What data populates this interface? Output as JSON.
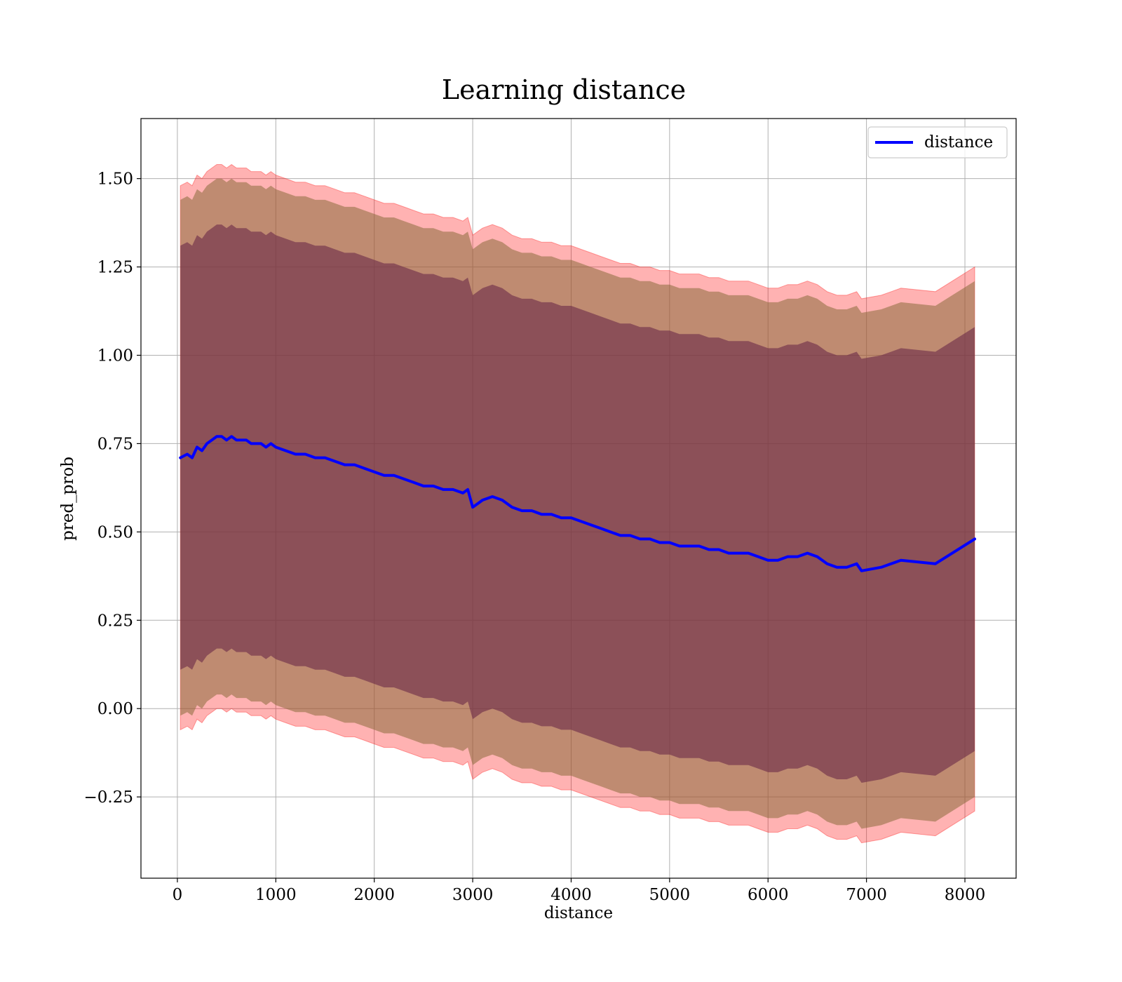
{
  "chart_data": {
    "type": "line",
    "title": "Learning distance",
    "xlabel": "distance",
    "ylabel": "pred_prob",
    "xlim": [
      -370,
      8520
    ],
    "ylim": [
      -0.48,
      1.67
    ],
    "xticks": [
      0,
      1000,
      2000,
      3000,
      4000,
      5000,
      6000,
      7000,
      8000
    ],
    "xtick_labels": [
      "0",
      "1000",
      "2000",
      "3000",
      "4000",
      "5000",
      "6000",
      "7000",
      "8000"
    ],
    "yticks": [
      -0.25,
      0.0,
      0.25,
      0.5,
      0.75,
      1.0,
      1.25,
      1.5
    ],
    "ytick_labels": [
      "−0.25",
      "0.00",
      "0.25",
      "0.50",
      "0.75",
      "1.00",
      "1.25",
      "1.50"
    ],
    "grid": true,
    "legend": {
      "position": "top-right",
      "entries": [
        "distance"
      ]
    },
    "colors": {
      "line": "#0000ff",
      "band_outer": "#ff0000",
      "band_mid": "#8b6c3c",
      "band_inner": "#6b2a48",
      "grid": "#b0b0b0"
    },
    "band_offsets": {
      "inner": 0.6,
      "mid": 0.73,
      "outer": 0.77
    },
    "series": [
      {
        "name": "distance",
        "x": [
          30,
          100,
          150,
          200,
          250,
          300,
          350,
          400,
          450,
          500,
          550,
          600,
          650,
          700,
          750,
          800,
          850,
          900,
          950,
          1000,
          1100,
          1200,
          1300,
          1400,
          1500,
          1600,
          1700,
          1800,
          1900,
          2000,
          2100,
          2200,
          2300,
          2400,
          2500,
          2600,
          2700,
          2800,
          2900,
          2950,
          3000,
          3050,
          3100,
          3200,
          3300,
          3400,
          3500,
          3600,
          3700,
          3800,
          3900,
          4000,
          4100,
          4200,
          4300,
          4400,
          4500,
          4600,
          4700,
          4800,
          4900,
          5000,
          5100,
          5200,
          5300,
          5400,
          5500,
          5600,
          5700,
          5800,
          5900,
          6000,
          6100,
          6200,
          6300,
          6400,
          6500,
          6600,
          6700,
          6800,
          6900,
          6950,
          7150,
          7350,
          7700,
          8100
        ],
        "y": [
          0.71,
          0.72,
          0.71,
          0.74,
          0.73,
          0.75,
          0.76,
          0.77,
          0.77,
          0.76,
          0.77,
          0.76,
          0.76,
          0.76,
          0.75,
          0.75,
          0.75,
          0.74,
          0.75,
          0.74,
          0.73,
          0.72,
          0.72,
          0.71,
          0.71,
          0.7,
          0.69,
          0.69,
          0.68,
          0.67,
          0.66,
          0.66,
          0.65,
          0.64,
          0.63,
          0.63,
          0.62,
          0.62,
          0.61,
          0.62,
          0.57,
          0.58,
          0.59,
          0.6,
          0.59,
          0.57,
          0.56,
          0.56,
          0.55,
          0.55,
          0.54,
          0.54,
          0.53,
          0.52,
          0.51,
          0.5,
          0.49,
          0.49,
          0.48,
          0.48,
          0.47,
          0.47,
          0.46,
          0.46,
          0.46,
          0.45,
          0.45,
          0.44,
          0.44,
          0.44,
          0.43,
          0.42,
          0.42,
          0.43,
          0.43,
          0.44,
          0.43,
          0.41,
          0.4,
          0.4,
          0.41,
          0.39,
          0.4,
          0.42,
          0.41,
          0.48
        ]
      }
    ]
  }
}
